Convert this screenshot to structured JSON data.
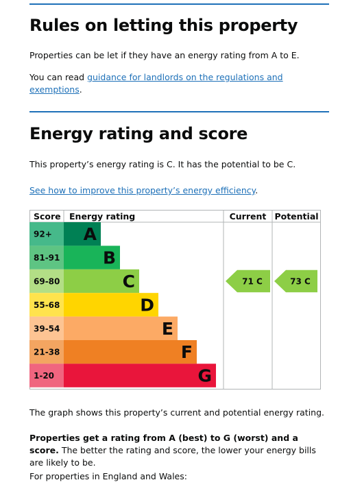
{
  "section1": {
    "title": "Rules on letting this property",
    "para1": "Properties can be let if they have an energy rating from A to E.",
    "para2_prefix": "You can read ",
    "para2_link": "guidance for landlords on the regulations and exemptions",
    "para2_suffix": "."
  },
  "section2": {
    "title": "Energy rating and score",
    "para1": "This property’s energy rating is C. It has the potential to be C.",
    "link": "See how to improve this property’s energy efficiency",
    "link_suffix": "."
  },
  "chart_data": {
    "type": "bar",
    "headers": {
      "score": "Score",
      "rating": "Energy rating",
      "current": "Current",
      "potential": "Potential"
    },
    "bands": [
      {
        "score": "92+",
        "letter": "A",
        "color": "#008054",
        "score_bg": "#46b98a"
      },
      {
        "score": "81-91",
        "letter": "B",
        "color": "#19b459",
        "score_bg": "#5ec483"
      },
      {
        "score": "69-80",
        "letter": "C",
        "color": "#8dce46",
        "score_bg": "#b3de86"
      },
      {
        "score": "55-68",
        "letter": "D",
        "color": "#ffd500",
        "score_bg": "#ffe34d"
      },
      {
        "score": "39-54",
        "letter": "E",
        "color": "#fcaa65",
        "score_bg": "#fdc493"
      },
      {
        "score": "21-38",
        "letter": "F",
        "color": "#ef8023",
        "score_bg": "#f3a561"
      },
      {
        "score": "1-20",
        "letter": "G",
        "color": "#e9153b",
        "score_bg": "#f0657f"
      }
    ],
    "current": {
      "score": 71,
      "letter": "C",
      "label": "71  C",
      "color": "#8dce46"
    },
    "potential": {
      "score": 73,
      "letter": "C",
      "label": "73  C",
      "color": "#8dce46"
    }
  },
  "section3": {
    "para1": "The graph shows this property’s current and potential energy rating.",
    "para2_bold": "Properties get a rating from A (best) to G (worst) and a score.",
    "para2_rest": " The better the rating and score, the lower your energy bills are likely to be.",
    "para3": "For properties in England and Wales:"
  }
}
